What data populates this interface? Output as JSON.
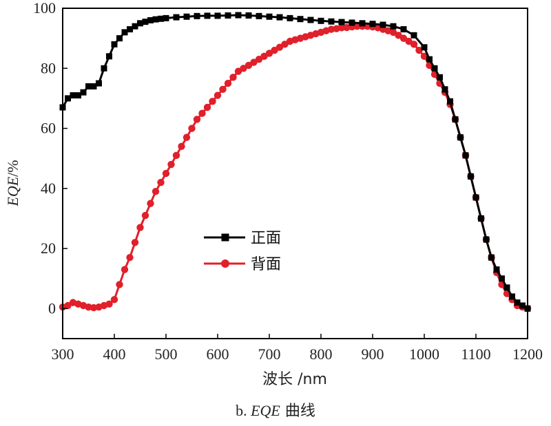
{
  "chart_data": {
    "type": "line",
    "xlabel": "波长 /nm",
    "ylabel_italic": "EQE",
    "ylabel_suffix": "/%",
    "xlim": [
      300,
      1200
    ],
    "ylim": [
      -10,
      100
    ],
    "xticks": [
      300,
      400,
      500,
      600,
      700,
      800,
      900,
      1000,
      1100,
      1200
    ],
    "yticks": [
      0,
      20,
      40,
      60,
      80,
      100
    ],
    "caption_prefix": "b. ",
    "caption_italic": "EQE",
    "caption_suffix": " 曲线",
    "legend_position": "center-left",
    "series": [
      {
        "name": "正面",
        "color": "#000000",
        "marker": "square",
        "points": [
          [
            300,
            67
          ],
          [
            310,
            70
          ],
          [
            320,
            71
          ],
          [
            330,
            71
          ],
          [
            340,
            72
          ],
          [
            350,
            74
          ],
          [
            360,
            74
          ],
          [
            370,
            75
          ],
          [
            380,
            80
          ],
          [
            390,
            84
          ],
          [
            400,
            88
          ],
          [
            410,
            90
          ],
          [
            420,
            92
          ],
          [
            430,
            93
          ],
          [
            440,
            94
          ],
          [
            450,
            95
          ],
          [
            460,
            95.5
          ],
          [
            470,
            96
          ],
          [
            480,
            96.3
          ],
          [
            490,
            96.5
          ],
          [
            500,
            96.7
          ],
          [
            520,
            97
          ],
          [
            540,
            97.2
          ],
          [
            560,
            97.4
          ],
          [
            580,
            97.5
          ],
          [
            600,
            97.5
          ],
          [
            620,
            97.6
          ],
          [
            640,
            97.7
          ],
          [
            660,
            97.6
          ],
          [
            680,
            97.4
          ],
          [
            700,
            97.2
          ],
          [
            720,
            97
          ],
          [
            740,
            96.7
          ],
          [
            760,
            96.4
          ],
          [
            780,
            96.1
          ],
          [
            800,
            95.8
          ],
          [
            820,
            95.6
          ],
          [
            840,
            95.4
          ],
          [
            860,
            95.2
          ],
          [
            880,
            95
          ],
          [
            900,
            94.8
          ],
          [
            920,
            94.5
          ],
          [
            940,
            94
          ],
          [
            960,
            93
          ],
          [
            980,
            91
          ],
          [
            1000,
            87
          ],
          [
            1010,
            83
          ],
          [
            1020,
            80
          ],
          [
            1030,
            77
          ],
          [
            1040,
            73
          ],
          [
            1050,
            69
          ],
          [
            1060,
            63
          ],
          [
            1070,
            57
          ],
          [
            1080,
            51
          ],
          [
            1090,
            44
          ],
          [
            1100,
            37
          ],
          [
            1110,
            30
          ],
          [
            1120,
            23
          ],
          [
            1130,
            17
          ],
          [
            1140,
            13
          ],
          [
            1150,
            10
          ],
          [
            1160,
            7
          ],
          [
            1170,
            4
          ],
          [
            1180,
            2
          ],
          [
            1190,
            1
          ],
          [
            1200,
            0
          ]
        ]
      },
      {
        "name": "背面",
        "color": "#e0202a",
        "marker": "circle",
        "points": [
          [
            300,
            0.5
          ],
          [
            310,
            1
          ],
          [
            320,
            2
          ],
          [
            330,
            1.5
          ],
          [
            340,
            1
          ],
          [
            350,
            0.5
          ],
          [
            360,
            0.3
          ],
          [
            370,
            0.5
          ],
          [
            380,
            1
          ],
          [
            390,
            1.5
          ],
          [
            400,
            3
          ],
          [
            410,
            8
          ],
          [
            420,
            13
          ],
          [
            430,
            17
          ],
          [
            440,
            22
          ],
          [
            450,
            27
          ],
          [
            460,
            31
          ],
          [
            470,
            35
          ],
          [
            480,
            39
          ],
          [
            490,
            42
          ],
          [
            500,
            45
          ],
          [
            510,
            48
          ],
          [
            520,
            51
          ],
          [
            530,
            54
          ],
          [
            540,
            57
          ],
          [
            550,
            60
          ],
          [
            560,
            63
          ],
          [
            570,
            65
          ],
          [
            580,
            67
          ],
          [
            590,
            69
          ],
          [
            600,
            71
          ],
          [
            610,
            73
          ],
          [
            620,
            75
          ],
          [
            630,
            77
          ],
          [
            640,
            79
          ],
          [
            650,
            80
          ],
          [
            660,
            81
          ],
          [
            670,
            82
          ],
          [
            680,
            83
          ],
          [
            690,
            84
          ],
          [
            700,
            85
          ],
          [
            710,
            86
          ],
          [
            720,
            87
          ],
          [
            730,
            88
          ],
          [
            740,
            89
          ],
          [
            750,
            89.5
          ],
          [
            760,
            90
          ],
          [
            770,
            90.5
          ],
          [
            780,
            91
          ],
          [
            790,
            91.5
          ],
          [
            800,
            92
          ],
          [
            810,
            92.5
          ],
          [
            820,
            93
          ],
          [
            830,
            93.2
          ],
          [
            840,
            93.5
          ],
          [
            850,
            93.6
          ],
          [
            860,
            93.8
          ],
          [
            870,
            94
          ],
          [
            880,
            94
          ],
          [
            890,
            94
          ],
          [
            900,
            93.8
          ],
          [
            910,
            93.5
          ],
          [
            920,
            93
          ],
          [
            930,
            92.5
          ],
          [
            940,
            92
          ],
          [
            950,
            91
          ],
          [
            960,
            90
          ],
          [
            970,
            89
          ],
          [
            980,
            88
          ],
          [
            990,
            86
          ],
          [
            1000,
            84
          ],
          [
            1010,
            81
          ],
          [
            1020,
            78
          ],
          [
            1030,
            75
          ],
          [
            1040,
            72
          ],
          [
            1050,
            68
          ],
          [
            1060,
            63
          ],
          [
            1070,
            57
          ],
          [
            1080,
            51
          ],
          [
            1090,
            44
          ],
          [
            1100,
            37
          ],
          [
            1110,
            30
          ],
          [
            1120,
            23
          ],
          [
            1130,
            17
          ],
          [
            1140,
            12
          ],
          [
            1150,
            8
          ],
          [
            1160,
            5
          ],
          [
            1170,
            3
          ],
          [
            1180,
            1
          ],
          [
            1190,
            0.5
          ],
          [
            1200,
            0
          ]
        ]
      }
    ]
  }
}
